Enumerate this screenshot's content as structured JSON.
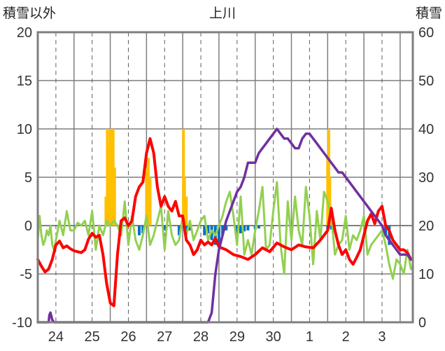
{
  "chart_data": {
    "type": "line",
    "title": "上川",
    "ylabel_left": "積雪以外",
    "ylabel_right": "積雪",
    "ylim_left": [
      -10,
      20
    ],
    "ylim_right": [
      0,
      60
    ],
    "yticks_left": [
      "20",
      "15",
      "10",
      "5",
      "0",
      "-5",
      "-10"
    ],
    "yticks_right": [
      "60",
      "50",
      "40",
      "30",
      "20",
      "10",
      "0"
    ],
    "x_range_days": [
      0,
      10.35
    ],
    "x_day_labels": [
      "24",
      "25",
      "26",
      "27",
      "28",
      "29",
      "30",
      "1",
      "2",
      "3"
    ],
    "grid": true,
    "colors": {
      "temperature": "#ff0000",
      "wind": "#92d050",
      "snow_depth": "#7030a0",
      "precip": "#ffc000",
      "negative_bars": "#0070c0"
    },
    "series": [
      {
        "key": "temperature",
        "axis": "left",
        "x": [
          0.0,
          0.1,
          0.2,
          0.3,
          0.4,
          0.5,
          0.6,
          0.7,
          0.8,
          0.9,
          1.0,
          1.1,
          1.2,
          1.3,
          1.4,
          1.5,
          1.6,
          1.7,
          1.8,
          1.9,
          2.0,
          2.1,
          2.2,
          2.3,
          2.4,
          2.5,
          2.6,
          2.7,
          2.8,
          2.9,
          3.0,
          3.1,
          3.2,
          3.3,
          3.4,
          3.5,
          3.6,
          3.7,
          3.8,
          3.9,
          4.0,
          4.1,
          4.2,
          4.3,
          4.4,
          4.5,
          4.6,
          4.7,
          4.8,
          4.9,
          5.0,
          5.2,
          5.4,
          5.6,
          5.8,
          6.0,
          6.2,
          6.4,
          6.6,
          6.8,
          7.0,
          7.2,
          7.4,
          7.6,
          7.8,
          8.0,
          8.1,
          8.2,
          8.3,
          8.4,
          8.5,
          8.6,
          8.7,
          8.8,
          8.9,
          9.0,
          9.1,
          9.2,
          9.3,
          9.4,
          9.5,
          9.6,
          9.7,
          9.8,
          9.9,
          10.0,
          10.1,
          10.2,
          10.3
        ],
        "y": [
          -3.5,
          -4.2,
          -4.8,
          -4.5,
          -3.5,
          -2.0,
          -1.6,
          -2.3,
          -2.1,
          -2.4,
          -2.6,
          -2.7,
          -2.8,
          -2.5,
          -1.4,
          -0.8,
          -1.2,
          -1.0,
          -3.0,
          -6.0,
          -8.0,
          -8.3,
          -3.0,
          0.5,
          0.8,
          0.0,
          0.5,
          3.0,
          4.0,
          4.5,
          7.5,
          9.0,
          7.5,
          4.0,
          2.0,
          3.0,
          2.0,
          1.5,
          2.5,
          1.0,
          1.0,
          -1.5,
          -2.0,
          -3.0,
          -2.5,
          -1.5,
          -2.0,
          -1.7,
          -2.0,
          -1.3,
          -2.2,
          -2.5,
          -3.0,
          -3.2,
          -3.5,
          -3.0,
          -2.3,
          -2.7,
          -1.8,
          -2.2,
          -2.5,
          -2.0,
          -2.2,
          -2.3,
          -1.5,
          -0.5,
          1.8,
          -0.5,
          -2.0,
          -3.0,
          -2.5,
          -3.5,
          -4.0,
          -3.3,
          -2.5,
          -1.0,
          0.5,
          1.2,
          0.2,
          1.5,
          2.0,
          0.0,
          -0.5,
          -1.5,
          -2.0,
          -2.5,
          -2.5,
          -2.8,
          -3.5
        ]
      },
      {
        "key": "wind",
        "axis": "left",
        "x": [
          0.0,
          0.05,
          0.1,
          0.15,
          0.2,
          0.25,
          0.3,
          0.35,
          0.4,
          0.45,
          0.5,
          0.6,
          0.7,
          0.8,
          0.9,
          1.0,
          1.1,
          1.2,
          1.3,
          1.4,
          1.5,
          1.6,
          1.7,
          1.8,
          1.9,
          2.0,
          2.1,
          2.2,
          2.3,
          2.4,
          2.5,
          2.6,
          2.7,
          2.8,
          2.9,
          3.0,
          3.1,
          3.2,
          3.3,
          3.4,
          3.5,
          3.6,
          3.7,
          3.8,
          3.9,
          4.0,
          4.1,
          4.2,
          4.3,
          4.4,
          4.5,
          4.6,
          4.7,
          4.8,
          4.9,
          5.0,
          5.1,
          5.2,
          5.3,
          5.4,
          5.5,
          5.6,
          5.7,
          5.8,
          5.9,
          6.0,
          6.1,
          6.2,
          6.3,
          6.4,
          6.5,
          6.6,
          6.7,
          6.8,
          6.9,
          7.0,
          7.1,
          7.2,
          7.3,
          7.4,
          7.5,
          7.6,
          7.7,
          7.8,
          7.9,
          8.0,
          8.1,
          8.2,
          8.3,
          8.4,
          8.5,
          8.6,
          8.7,
          8.8,
          8.9,
          9.0,
          9.1,
          9.2,
          9.3,
          9.4,
          9.5,
          9.6,
          9.7,
          9.8,
          9.9,
          10.0,
          10.1,
          10.2,
          10.3
        ],
        "y": [
          -1.5,
          1.0,
          -1.0,
          -2.0,
          -1.5,
          -0.5,
          -1.0,
          0.0,
          -2.0,
          -2.5,
          -1.5,
          0.5,
          -1.0,
          1.5,
          -0.5,
          -0.5,
          0.3,
          0.0,
          0.5,
          -1.0,
          1.5,
          -2.5,
          0.0,
          -1.0,
          0.5,
          0.0,
          0.5,
          0.0,
          -1.0,
          2.5,
          -2.0,
          1.0,
          -1.5,
          -2.5,
          -1.0,
          1.0,
          -2.0,
          -1.0,
          0.5,
          2.0,
          -2.5,
          1.5,
          -1.0,
          -2.0,
          -1.5,
          1.0,
          -1.0,
          0.5,
          -1.5,
          -0.5,
          0.5,
          1.0,
          -1.5,
          -0.5,
          -1.0,
          0.0,
          1.0,
          2.5,
          3.5,
          1.0,
          -2.0,
          3.0,
          -3.0,
          -1.5,
          -3.0,
          -0.5,
          1.5,
          4.0,
          -2.5,
          -2.0,
          1.5,
          4.5,
          -2.0,
          -5.0,
          2.5,
          -1.5,
          3.0,
          -0.5,
          -2.0,
          4.0,
          1.0,
          -4.0,
          1.5,
          -1.5,
          3.5,
          2.5,
          1.0,
          -3.0,
          -2.0,
          -1.5,
          1.0,
          -2.5,
          -1.0,
          -1.5,
          -0.5,
          1.0,
          -3.0,
          -2.0,
          -1.5,
          -1.0,
          -0.5,
          -2.0,
          -4.0,
          -5.5,
          -3.5,
          -4.0,
          -5.0,
          -2.5,
          -4.5
        ]
      },
      {
        "key": "snow_depth",
        "axis": "right",
        "x": [
          0.0,
          0.3,
          0.32,
          0.35,
          0.4,
          0.45,
          0.5,
          2.0,
          4.0,
          4.6,
          4.7,
          4.8,
          4.9,
          5.0,
          5.1,
          5.2,
          5.3,
          5.4,
          5.5,
          5.6,
          5.7,
          5.8,
          5.9,
          6.0,
          6.1,
          6.2,
          6.3,
          6.4,
          6.5,
          6.6,
          6.7,
          6.8,
          6.9,
          7.0,
          7.1,
          7.2,
          7.3,
          7.4,
          7.5,
          7.6,
          7.7,
          7.8,
          7.9,
          8.0,
          8.1,
          8.2,
          8.3,
          8.4,
          8.5,
          8.6,
          8.7,
          8.8,
          8.9,
          9.0,
          9.1,
          9.2,
          9.3,
          9.4,
          9.5,
          9.6,
          9.7,
          9.8,
          9.9,
          10.0,
          10.1,
          10.2,
          10.3
        ],
        "y": [
          0,
          0,
          1.5,
          2.0,
          0.5,
          0,
          0,
          0,
          0,
          0,
          0,
          2,
          10,
          15,
          18,
          21,
          23,
          25,
          27,
          28,
          30,
          33,
          33,
          33,
          35,
          36,
          37,
          38,
          39,
          40,
          39,
          38,
          38,
          37,
          36,
          36,
          38,
          39,
          39,
          38,
          37,
          36,
          35,
          34,
          33,
          32,
          31,
          31,
          30,
          29,
          28,
          27,
          26,
          25,
          24,
          23,
          22,
          21,
          20,
          18,
          17,
          16,
          15,
          14,
          14,
          14,
          13
        ]
      },
      {
        "key": "precip",
        "axis": "left",
        "type": "bar",
        "x": [
          1.88,
          1.92,
          1.96,
          2.0,
          2.04,
          2.08,
          2.12,
          3.0,
          3.05,
          3.1,
          4.02,
          4.05,
          4.1,
          8.0,
          8.03,
          8.06,
          8.1
        ],
        "y": [
          3.0,
          10.0,
          8.0,
          10.0,
          10.0,
          10.0,
          6.0,
          6.0,
          7.0,
          5.0,
          10.0,
          5.0,
          3.0,
          7.0,
          10.0,
          5.0,
          1.0
        ]
      },
      {
        "key": "negative_bars",
        "axis": "left",
        "type": "bar",
        "x": [
          2.8,
          2.9,
          3.5,
          3.9,
          4.1,
          4.2,
          4.6,
          4.7,
          4.8,
          4.9,
          5.0,
          5.1,
          5.2,
          5.5,
          5.6,
          5.7,
          5.8,
          6.0,
          6.1,
          8.0,
          8.1,
          9.6,
          9.7
        ],
        "y": [
          -1.0,
          -0.8,
          -0.5,
          -1.0,
          -0.7,
          -0.5,
          -1.0,
          -0.8,
          -1.5,
          -2.0,
          -2.0,
          -1.0,
          -0.5,
          -1.0,
          -0.8,
          -0.6,
          -0.5,
          -0.4,
          -0.3,
          -0.5,
          -0.4,
          -1.0,
          -2.0
        ]
      }
    ]
  }
}
